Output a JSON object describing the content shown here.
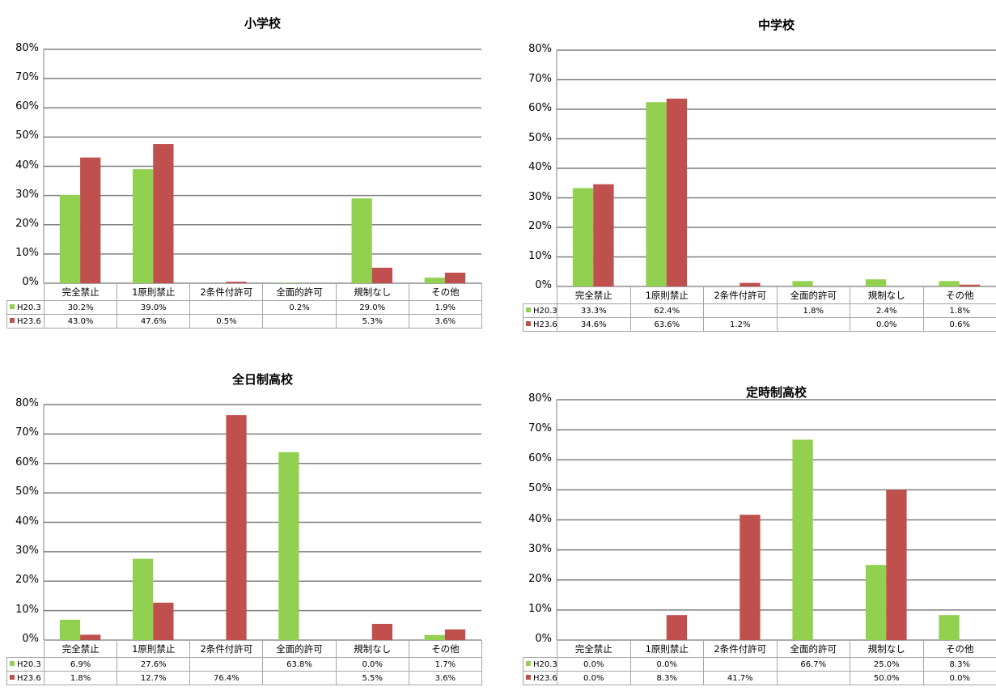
{
  "colors": {
    "H20.3": "#92d050",
    "H23.6": "#c0504d",
    "grid": "#7f7f7f"
  },
  "chart_data": [
    {
      "type": "bar",
      "title": "小学校",
      "categories": [
        "完全禁止",
        "1原則禁止",
        "2条件付許可",
        "全面的許可",
        "規制なし",
        "その他"
      ],
      "ylim": [
        0,
        80
      ],
      "yticks": [
        "0%",
        "10%",
        "20%",
        "30%",
        "40%",
        "50%",
        "60%",
        "70%",
        "80%"
      ],
      "series": [
        {
          "name": "H20.3",
          "values": [
            30.2,
            39.0,
            null,
            0.2,
            29.0,
            1.9
          ],
          "labels": [
            "30.2%",
            "39.0%",
            "",
            "0.2%",
            "29.0%",
            "1.9%"
          ]
        },
        {
          "name": "H23.6",
          "values": [
            43.0,
            47.6,
            0.5,
            null,
            5.3,
            3.6
          ],
          "labels": [
            "43.0%",
            "47.6%",
            "0.5%",
            "",
            "5.3%",
            "3.6%"
          ]
        }
      ],
      "grid": true,
      "legend": "data table"
    },
    {
      "type": "bar",
      "title": "中学校",
      "categories": [
        "完全禁止",
        "1原則禁止",
        "2条件付許可",
        "全面的許可",
        "規制なし",
        "その他"
      ],
      "ylim": [
        0,
        80
      ],
      "yticks": [
        "0%",
        "10%",
        "20%",
        "30%",
        "40%",
        "50%",
        "60%",
        "70%",
        "80%"
      ],
      "series": [
        {
          "name": "H20.3",
          "values": [
            33.3,
            62.4,
            null,
            1.8,
            2.4,
            1.8
          ],
          "labels": [
            "33.3%",
            "62.4%",
            "",
            "1.8%",
            "2.4%",
            "1.8%"
          ]
        },
        {
          "name": "H23.6",
          "values": [
            34.6,
            63.6,
            1.2,
            null,
            0.0,
            0.6
          ],
          "labels": [
            "34.6%",
            "63.6%",
            "1.2%",
            "",
            "0.0%",
            "0.6%"
          ]
        }
      ],
      "grid": true,
      "legend": "data table"
    },
    {
      "type": "bar",
      "title": "全日制高校",
      "categories": [
        "完全禁止",
        "1原則禁止",
        "2条件付許可",
        "全面的許可",
        "規制なし",
        "その他"
      ],
      "ylim": [
        0,
        80
      ],
      "yticks": [
        "0%",
        "10%",
        "20%",
        "30%",
        "40%",
        "50%",
        "60%",
        "70%",
        "80%"
      ],
      "series": [
        {
          "name": "H20.3",
          "values": [
            6.9,
            27.6,
            null,
            63.8,
            0.0,
            1.7
          ],
          "labels": [
            "6.9%",
            "27.6%",
            "",
            "63.8%",
            "0.0%",
            "1.7%"
          ]
        },
        {
          "name": "H23.6",
          "values": [
            1.8,
            12.7,
            76.4,
            null,
            5.5,
            3.6
          ],
          "labels": [
            "1.8%",
            "12.7%",
            "76.4%",
            "",
            "5.5%",
            "3.6%"
          ]
        }
      ],
      "grid": true,
      "legend": "data table"
    },
    {
      "type": "bar",
      "title": "定時制高校",
      "categories": [
        "完全禁止",
        "1原則禁止",
        "2条件付許可",
        "全面的許可",
        "規制なし",
        "その他"
      ],
      "ylim": [
        0,
        80
      ],
      "yticks": [
        "0%",
        "10%",
        "20%",
        "30%",
        "40%",
        "50%",
        "60%",
        "70%",
        "80%"
      ],
      "series": [
        {
          "name": "H20.3",
          "values": [
            0.0,
            0.0,
            null,
            66.7,
            25.0,
            8.3
          ],
          "labels": [
            "0.0%",
            "0.0%",
            "",
            "66.7%",
            "25.0%",
            "8.3%"
          ]
        },
        {
          "name": "H23.6",
          "values": [
            0.0,
            8.3,
            41.7,
            null,
            50.0,
            0.0
          ],
          "labels": [
            "0.0%",
            "8.3%",
            "41.7%",
            "",
            "50.0%",
            "0.0%"
          ]
        }
      ],
      "grid": true,
      "legend": "data table"
    }
  ]
}
